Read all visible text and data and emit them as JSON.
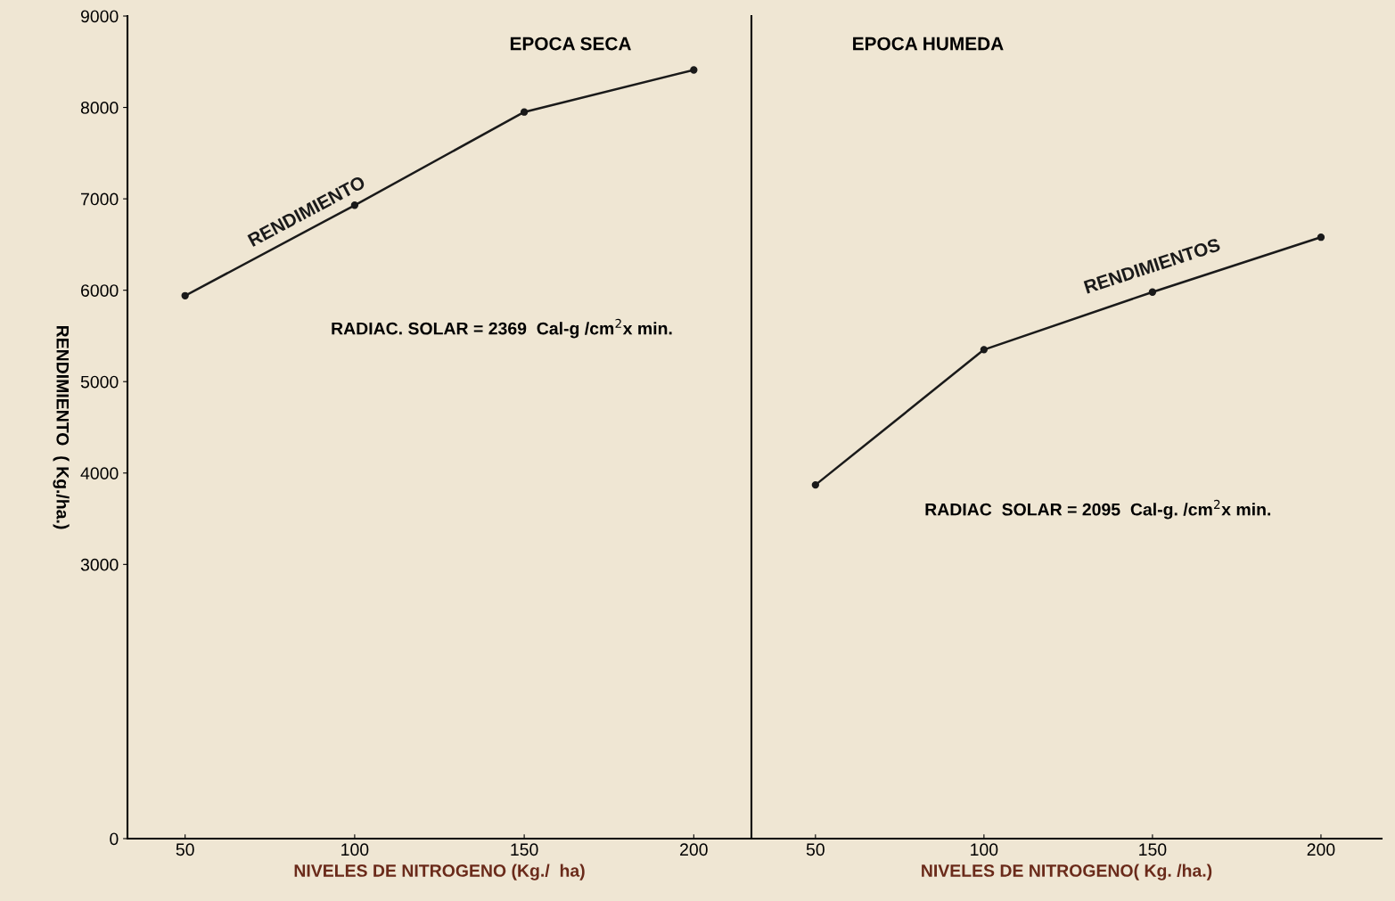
{
  "chart_data": [
    {
      "type": "line",
      "title": "EPOCA SECA",
      "xlabel": "NIVELES DE NITROGENO (Kg./  ha)",
      "ylabel": "RENDIMIENTO  ( Kg./ha.)",
      "x": [
        50,
        100,
        150,
        200
      ],
      "series": [
        {
          "name": "RENDIMIENTO",
          "color": "#1a1a1a",
          "values": [
            5940,
            6930,
            7950,
            8410
          ]
        }
      ],
      "xlim": [
        33,
        217
      ],
      "xticks": [
        50,
        100,
        150,
        200
      ],
      "ylim": [
        0,
        9000
      ],
      "yticks": [
        0,
        3000,
        4000,
        5000,
        6000,
        7000,
        8000,
        9000
      ],
      "marker": "circle",
      "line_style": "solid",
      "grid": false,
      "legend": false,
      "annotations": [
        "RADIAC. SOLAR = 2369  Cal-g /cm$^{2}$x min."
      ]
    },
    {
      "type": "line",
      "title": "EPOCA HUMEDA",
      "xlabel": "NIVELES DE NITROGENO( Kg. /ha.)",
      "x": [
        50,
        100,
        150,
        200
      ],
      "series": [
        {
          "name": "RENDIMIENTOS",
          "color": "#1a1a1a",
          "values": [
            3870,
            5350,
            5980,
            6580
          ]
        }
      ],
      "xlim": [
        31,
        218
      ],
      "xticks": [
        50,
        100,
        150,
        200
      ],
      "ylim": [
        0,
        9000
      ],
      "tick_labels": "x",
      "marker": "circle",
      "line_style": "solid",
      "grid": false,
      "legend": false,
      "annotations": [
        "RADIAC  SOLAR = 2095  Cal-g. /cm$^{2}$x min."
      ]
    }
  ]
}
